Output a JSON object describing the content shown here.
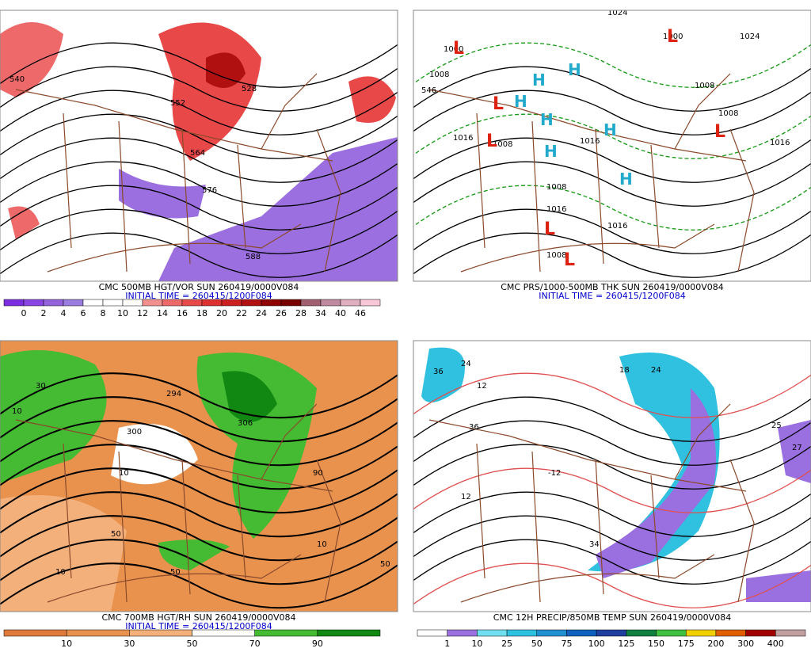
{
  "panels": [
    {
      "title": "CMC 500MB HGT/VOR SUN 260419/0000V084",
      "subtitle": "INITIAL TIME = 260415/1200F084",
      "colorbar": {
        "labels": [
          "0",
          "2",
          "4",
          "6",
          "8",
          "10",
          "12",
          "14",
          "16",
          "18",
          "20",
          "22",
          "24",
          "26",
          "28",
          "34",
          "40",
          "46"
        ],
        "colors": [
          "#7d2de0",
          "#8a45e4",
          "#9462dc",
          "#9b7ce0",
          "#ffffff",
          "#ffffff",
          "#ffffff",
          "#f29090",
          "#ee6a6a",
          "#e84a4a",
          "#dd3030",
          "#cc2020",
          "#b01010",
          "#900000",
          "#780000",
          "#a06070",
          "#c08aa0",
          "#e0b0c0",
          "#f8c8d8"
        ]
      },
      "contour_labels": [
        "540",
        "552",
        "528",
        "564",
        "576",
        "588"
      ]
    },
    {
      "title": "CMC PRS/1000-500MB THK SUN 260419/0000V084",
      "subtitle": "INITIAL TIME = 260415/1200F084",
      "contour_labels": [
        "1000",
        "1008",
        "1008",
        "1024",
        "1016",
        "1016",
        "1008",
        "1016",
        "1024",
        "1008",
        "1008",
        "1000",
        "1016",
        "1016",
        "1008",
        "546"
      ],
      "lows": [
        "L",
        "L",
        "L",
        "L",
        "L",
        "L",
        "L"
      ],
      "highs": [
        "H",
        "H",
        "H",
        "H",
        "H",
        "H",
        "H"
      ]
    },
    {
      "title": "CMC 700MB HGT/RH SUN 260419/0000V084",
      "subtitle": "INITIAL TIME = 260415/1200F084",
      "colorbar": {
        "labels": [
          "10",
          "30",
          "50",
          "70",
          "90"
        ],
        "colors": [
          "#e07a3a",
          "#e8924e",
          "#f4b07a",
          "#ffffff",
          "#44bb33",
          "#118811"
        ]
      },
      "contour_labels": [
        "300",
        "294",
        "306",
        "10",
        "50",
        "10",
        "50",
        "10",
        "30",
        "90",
        "10",
        "50"
      ]
    },
    {
      "title": "CMC 12H PRECIP/850MB TEMP SUN 260419/0000V084",
      "colorbar": {
        "labels": [
          "1",
          "10",
          "25",
          "50",
          "75",
          "100",
          "125",
          "150",
          "175",
          "200",
          "300",
          "400"
        ],
        "colors": [
          "#ffffff",
          "#9a6fe0",
          "#70e0f0",
          "#30c0e0",
          "#2090d0",
          "#1060c0",
          "#2040a0",
          "#108040",
          "#40c040",
          "#f0d000",
          "#e06000",
          "#a00000",
          "#c0a0a0"
        ]
      },
      "contour_labels": [
        "36",
        "24",
        "12",
        "36",
        "24",
        "18",
        "34",
        "25",
        "27",
        "-12",
        "12"
      ]
    }
  ]
}
